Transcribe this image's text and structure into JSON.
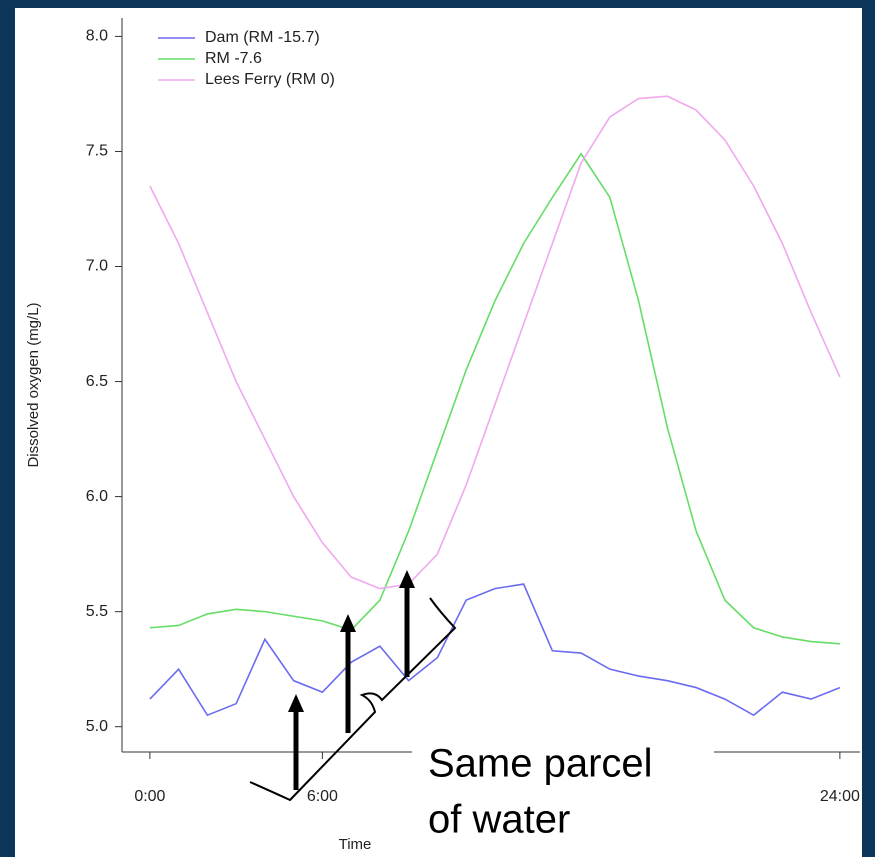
{
  "chart_data": {
    "type": "line",
    "y_label": "Dissolved oxygen (mg/L)",
    "x_label": "Time",
    "annotation": [
      "Same parcel",
      "of water"
    ],
    "x": [
      0,
      1,
      2,
      3,
      4,
      5,
      6,
      7,
      8,
      9,
      10,
      11,
      12,
      13,
      14,
      15,
      16,
      17,
      18,
      19,
      20,
      21,
      22,
      23,
      24
    ],
    "xlim": [
      -0.97,
      24.7
    ],
    "xticks": [
      {
        "value": 0,
        "label": "0:00"
      },
      {
        "value": 6,
        "label": "6:00"
      },
      {
        "value": 24,
        "label": "24:00"
      }
    ],
    "ylim": [
      4.89,
      8.08
    ],
    "yticks": [
      {
        "value": 5,
        "label": "5.0"
      },
      5.5,
      {
        "value": 6,
        "label": "6.0"
      },
      6.5,
      {
        "value": 7,
        "label": "7.0"
      },
      7.5,
      {
        "value": 8,
        "label": "8.0"
      }
    ],
    "legend": "top-left",
    "series": [
      {
        "name": "Dam (RM -15.7)",
        "color": "#6b6bf0",
        "values": [
          5.12,
          5.25,
          5.05,
          5.1,
          5.38,
          5.2,
          5.15,
          5.28,
          5.35,
          5.2,
          5.3,
          5.55,
          5.6,
          5.62,
          5.33,
          5.32,
          5.25,
          5.22,
          5.2,
          5.17,
          5.12,
          5.05,
          5.15,
          5.12,
          5.17
        ]
      },
      {
        "name": "RM -7.6",
        "color": "#66dd66",
        "values": [
          5.43,
          5.44,
          5.49,
          5.51,
          5.5,
          5.48,
          5.46,
          5.42,
          5.55,
          5.85,
          6.2,
          6.55,
          6.85,
          7.1,
          7.3,
          7.49,
          7.3,
          6.85,
          6.3,
          5.85,
          5.55,
          5.43,
          5.39,
          5.37,
          5.36
        ]
      },
      {
        "name": "Lees Ferry (RM 0)",
        "color": "#f0a8ee",
        "values": [
          7.35,
          7.1,
          6.8,
          6.5,
          6.25,
          6.0,
          5.8,
          5.65,
          5.6,
          5.62,
          5.75,
          6.05,
          6.4,
          6.75,
          7.1,
          7.45,
          7.65,
          7.73,
          7.74,
          7.68,
          7.55,
          7.35,
          7.1,
          6.8,
          6.52
        ]
      }
    ]
  }
}
